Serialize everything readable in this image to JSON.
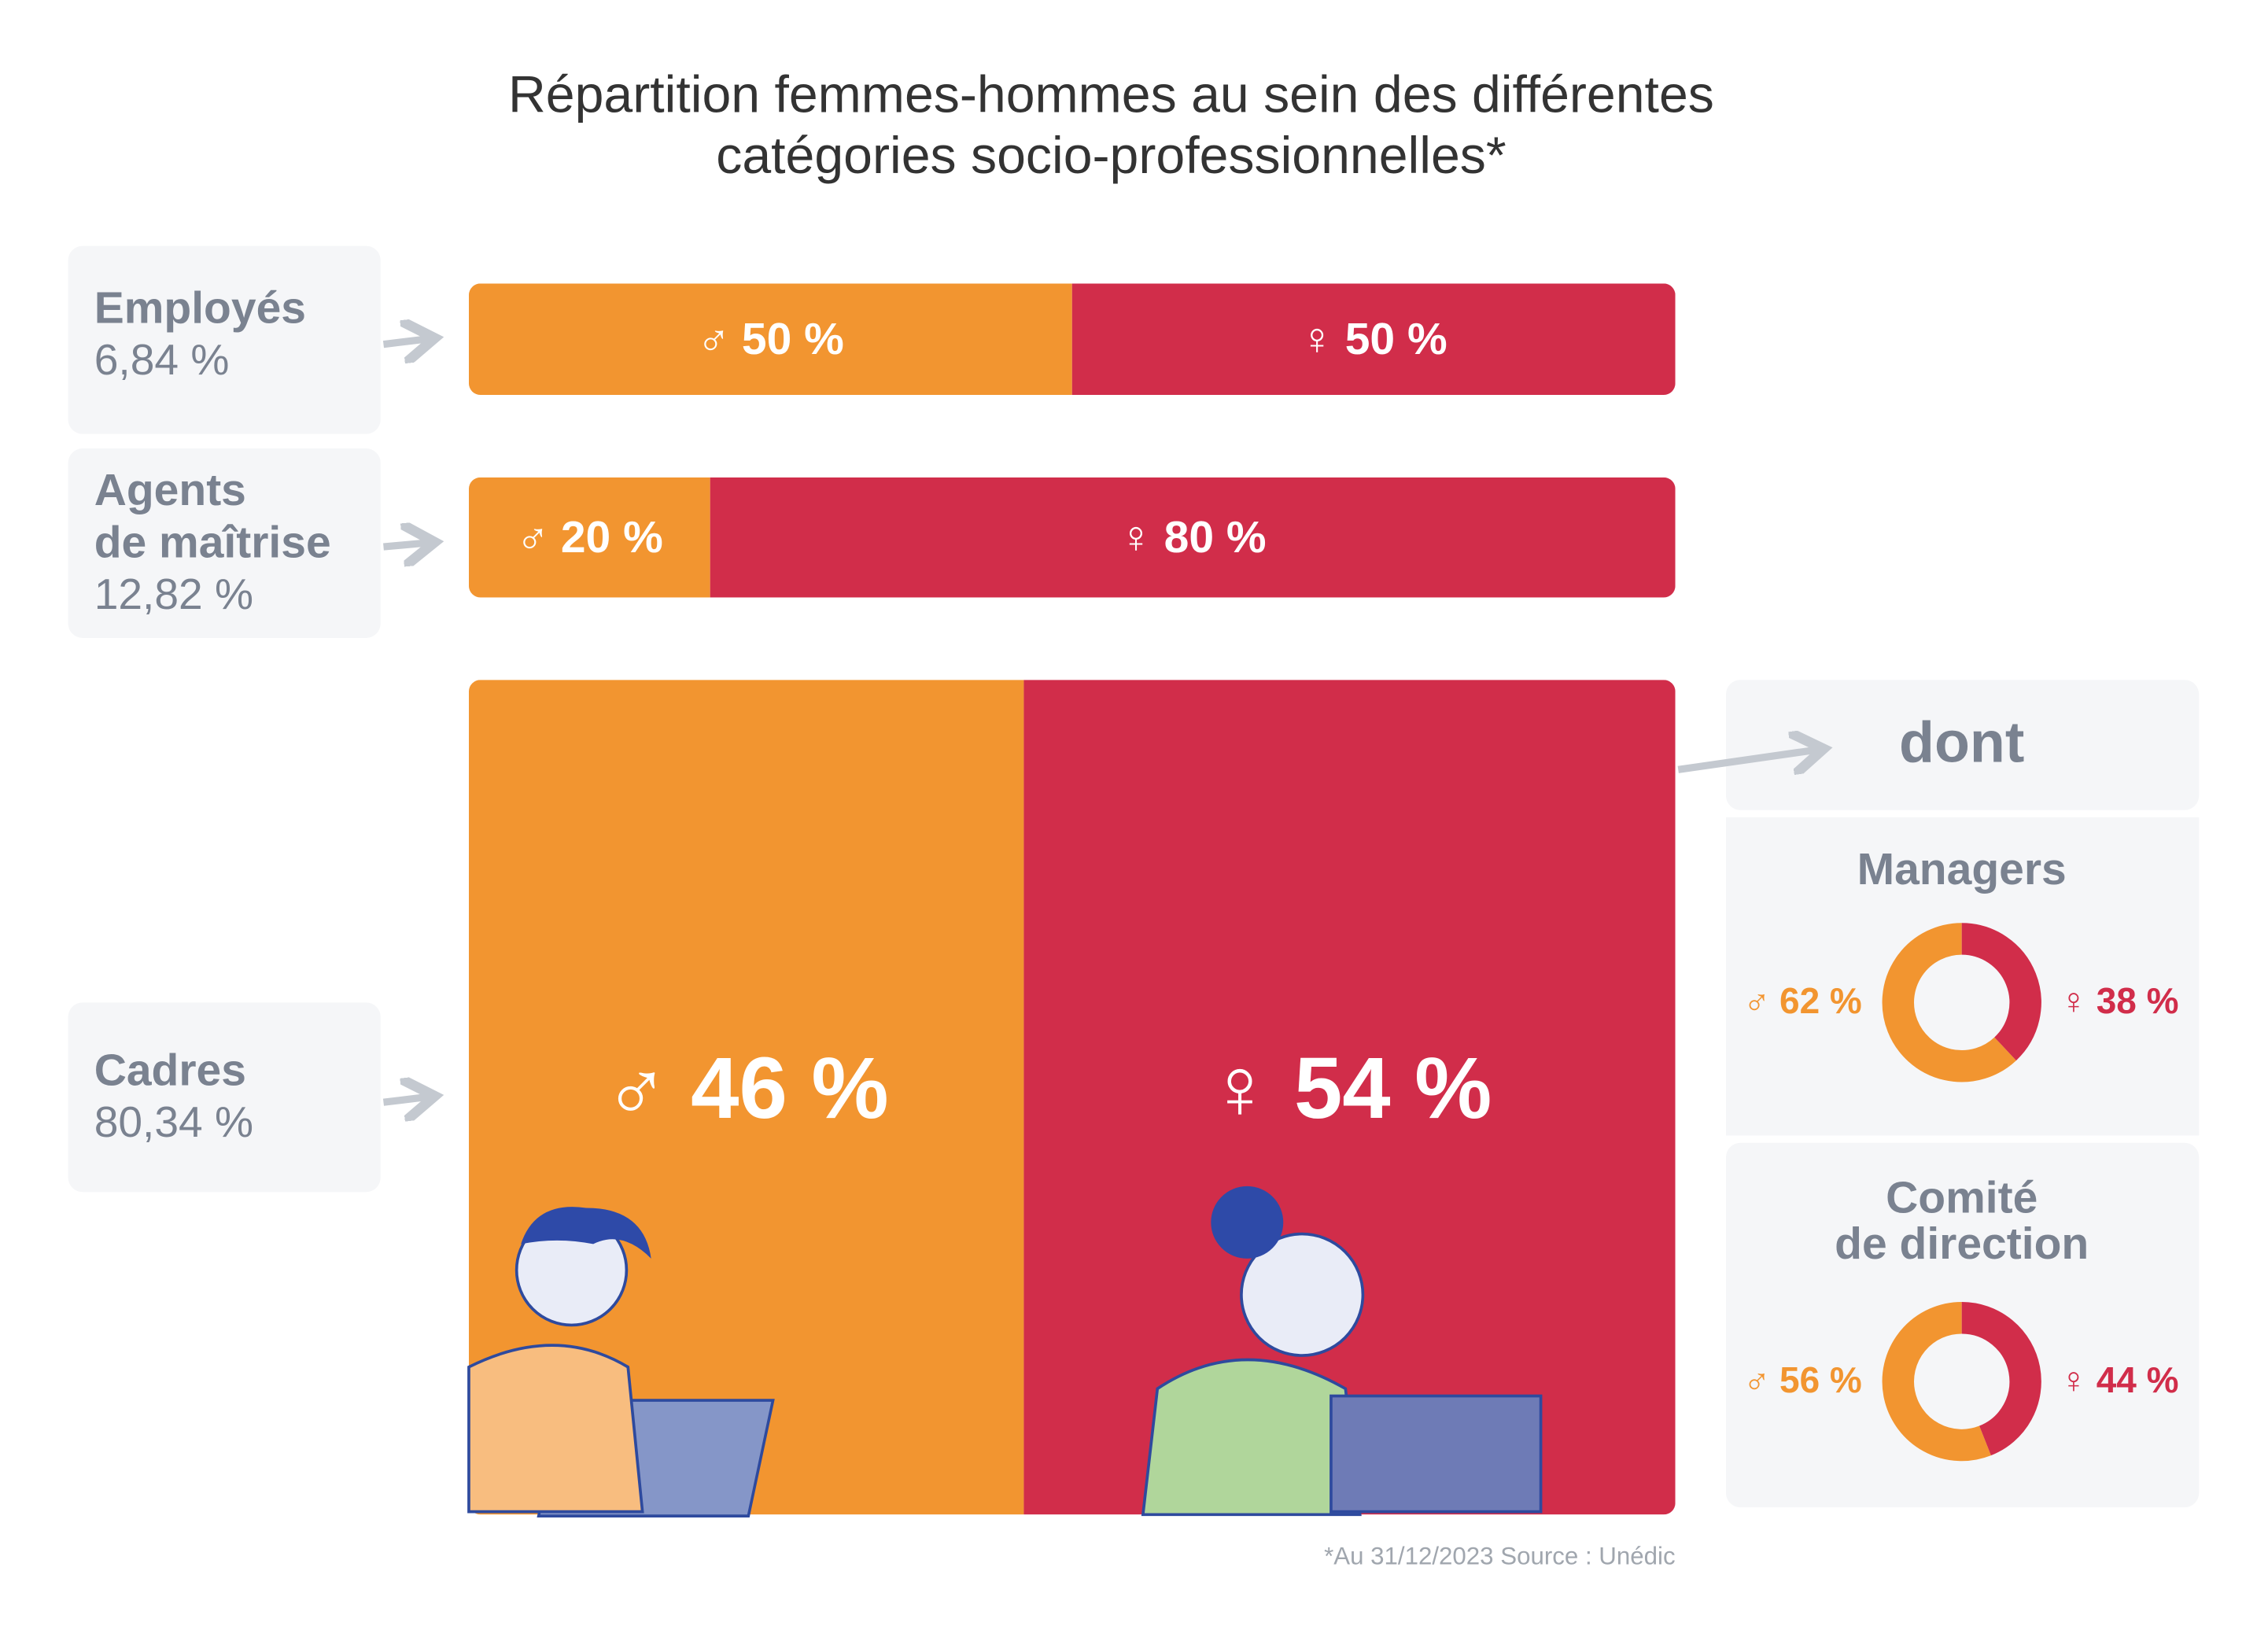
{
  "title_lines": [
    "Répartition femmes-hommes au sein des différentes",
    "catégories socio-professionnelles*"
  ],
  "symbols": {
    "male": "♂",
    "female": "♀"
  },
  "colors": [
    "#f29530",
    "#d12d4a"
  ],
  "categories": [
    {
      "name_lines": [
        "Employés"
      ],
      "share": "6,84 %",
      "values": [
        50,
        50
      ],
      "value_labels": [
        "50 %",
        "50 %"
      ]
    },
    {
      "name_lines": [
        "Agents",
        "de maîtrise"
      ],
      "share": "12,82 %",
      "values": [
        20,
        80
      ],
      "value_labels": [
        "20 %",
        "80 %"
      ]
    },
    {
      "name_lines": [
        "Cadres"
      ],
      "share": "80,34 %",
      "values": [
        46,
        54
      ],
      "value_labels": [
        "46 %",
        "54 %"
      ]
    }
  ],
  "detail": {
    "heading": "dont",
    "groups": [
      {
        "name_lines": [
          "Managers"
        ],
        "values": [
          62,
          38
        ],
        "value_labels": [
          "62 %",
          "38 %"
        ]
      },
      {
        "name_lines": [
          "Comité",
          "de direction"
        ],
        "values": [
          56,
          44
        ],
        "value_labels": [
          "56 %",
          "44 %"
        ]
      }
    ]
  },
  "footnote": "*Au 31/12/2023  Source : Unédic"
}
